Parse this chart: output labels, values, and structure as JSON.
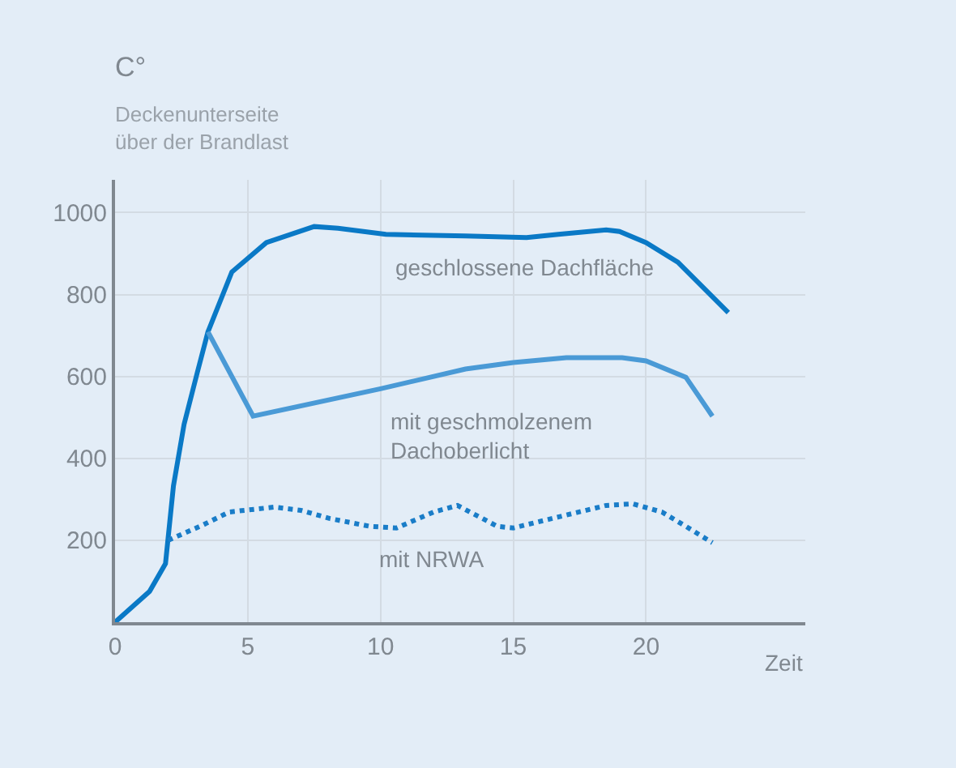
{
  "chart_data": {
    "type": "line",
    "ylabel": "C°",
    "subtitle": "Deckenunterseite\nüber der Brandlast",
    "xlabel": "Zeit",
    "xlim": [
      0,
      26
    ],
    "xticks": [
      0,
      5,
      10,
      15,
      20
    ],
    "ylim": [
      0,
      1080
    ],
    "yticks": [
      200,
      400,
      600,
      800,
      1000
    ],
    "grid": true,
    "legend": false,
    "series": [
      {
        "name": "geschlossene Dachfläche",
        "color": "#0a79c6",
        "line_style": "solid",
        "x": [
          0,
          1.3,
          1.9,
          2.2,
          2.6,
          3.1,
          3.5,
          4.4,
          5.7,
          7.5,
          8.4,
          10.2,
          13.2,
          15.5,
          16.7,
          18.5,
          19,
          20,
          21.2,
          23.1
        ],
        "values": [
          0,
          75,
          143,
          333,
          483,
          610,
          709,
          855,
          927,
          966,
          962,
          947,
          943,
          939,
          947,
          958,
          954,
          927,
          879,
          756
        ]
      },
      {
        "name": "mit geschmolzenem\nDachoberlicht",
        "color": "#4a9ad6",
        "line_style": "solid",
        "x": [
          3.5,
          5.2,
          10,
          13.2,
          15,
          17,
          19.1,
          20,
          21.5,
          22.5
        ],
        "values": [
          709,
          503,
          570,
          618,
          634,
          646,
          646,
          638,
          598,
          503
        ]
      },
      {
        "name": "mit NRWA",
        "color": "#1a7dc8",
        "line_style": "dotted",
        "x": [
          2.0,
          3.3,
          4.3,
          6.0,
          7.0,
          8.1,
          9.6,
          10.6,
          12.0,
          12.9,
          14.4,
          15,
          16.7,
          18.5,
          19.5,
          20.6,
          21.5,
          22.5
        ],
        "values": [
          200,
          237,
          269,
          281,
          273,
          253,
          234,
          230,
          269,
          285,
          234,
          230,
          257,
          285,
          289,
          269,
          234,
          194
        ]
      }
    ]
  }
}
